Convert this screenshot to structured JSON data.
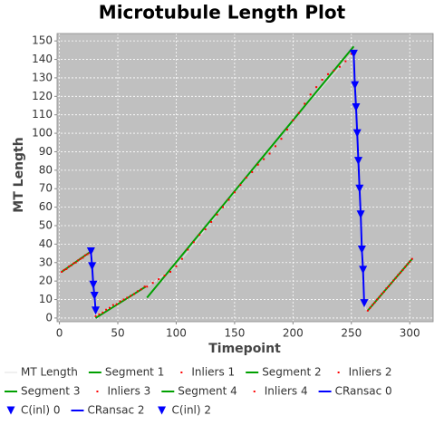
{
  "chart_data": {
    "type": "line",
    "title": "Microtubule Length Plot",
    "x_label": "Timepoint",
    "y_label": "MT Length",
    "xlim": [
      -2,
      320
    ],
    "ylim": [
      -2,
      154
    ],
    "xticks": [
      0,
      50,
      100,
      150,
      200,
      250,
      300
    ],
    "yticks": [
      0,
      10,
      20,
      30,
      40,
      50,
      60,
      70,
      80,
      90,
      100,
      110,
      120,
      130,
      140,
      150
    ],
    "grid": true,
    "background": "#c0c0c0",
    "series": [
      {
        "name": "MT Length",
        "style": "line",
        "color": "#e0e0e0",
        "x": [
          2,
          28,
          30,
          75,
          100,
          150,
          200,
          250,
          252,
          262,
          264,
          302
        ],
        "values": [
          25,
          36,
          1,
          17,
          28,
          68,
          107,
          143,
          143,
          5,
          4,
          32
        ]
      },
      {
        "name": "Segment 1",
        "style": "line",
        "color": "#00a000",
        "x": [
          2,
          28
        ],
        "values": [
          25,
          36.5
        ]
      },
      {
        "name": "Inliers 1",
        "style": "points",
        "color": "#ff0000",
        "x": [
          2,
          4,
          6,
          8,
          10,
          12,
          14,
          16,
          18,
          20,
          22,
          24,
          26,
          28
        ],
        "values": [
          25,
          26,
          26.5,
          27.8,
          28.4,
          29.6,
          30,
          31.2,
          32,
          32.6,
          33.9,
          34.5,
          35.2,
          36.4
        ]
      },
      {
        "name": "Segment 2",
        "style": "line",
        "color": "#00a000",
        "x": [
          31,
          74
        ],
        "values": [
          0,
          17
        ]
      },
      {
        "name": "Inliers 2",
        "style": "points",
        "color": "#ff0000",
        "x": [
          31,
          34,
          37,
          40,
          43,
          46,
          49,
          52,
          55,
          58,
          61,
          64,
          67,
          70,
          73
        ],
        "values": [
          1,
          2,
          3,
          4.5,
          5.5,
          7,
          7.5,
          9,
          10,
          11,
          12,
          13,
          14.5,
          15.5,
          17
        ]
      },
      {
        "name": "Segment 3",
        "style": "line",
        "color": "#00a000",
        "x": [
          75,
          252
        ],
        "values": [
          11,
          147
        ]
      },
      {
        "name": "Inliers 3",
        "style": "points",
        "color": "#ff0000",
        "x": [
          75,
          80,
          85,
          90,
          95,
          100,
          105,
          110,
          115,
          120,
          125,
          130,
          135,
          140,
          145,
          150,
          155,
          160,
          165,
          170,
          175,
          180,
          185,
          190,
          195,
          200,
          205,
          210,
          215,
          220,
          225,
          230,
          235,
          240,
          245,
          250
        ],
        "values": [
          17,
          19,
          21,
          23,
          25,
          28,
          32,
          37,
          41,
          45,
          48,
          52,
          56,
          60,
          64,
          68,
          72,
          76,
          79,
          83,
          86,
          89,
          93,
          97,
          102,
          107,
          111,
          116,
          121,
          125,
          129,
          132,
          134,
          136,
          139,
          143
        ]
      },
      {
        "name": "Segment 4",
        "style": "line",
        "color": "#00a000",
        "x": [
          264,
          302
        ],
        "values": [
          4,
          32
        ]
      },
      {
        "name": "Inliers 4",
        "style": "points",
        "color": "#ff0000",
        "x": [
          264,
          266,
          268,
          270,
          272,
          274,
          276,
          278,
          280,
          282,
          284,
          286,
          288,
          290,
          292,
          294,
          296,
          298,
          300,
          302
        ],
        "values": [
          4,
          5.5,
          7,
          8.4,
          10,
          11.4,
          13,
          14.3,
          16,
          17.2,
          18.8,
          20.3,
          21.7,
          23.3,
          24.6,
          26,
          27.6,
          29.1,
          30.5,
          32
        ]
      },
      {
        "name": "CRansac 0",
        "style": "line",
        "color": "#0000ff",
        "x": [
          27,
          28,
          29,
          30,
          31
        ],
        "values": [
          36,
          28,
          18,
          12,
          4
        ]
      },
      {
        "name": "C(inl) 0",
        "style": "triangles",
        "color": "#0000ff",
        "x": [
          27,
          28,
          29,
          30,
          31
        ],
        "values": [
          36,
          28,
          18,
          12,
          4
        ]
      },
      {
        "name": "CRansac 2",
        "style": "line",
        "color": "#0000ff",
        "x": [
          252,
          253,
          254,
          255,
          256,
          257,
          258,
          259,
          260,
          261
        ],
        "values": [
          143,
          126,
          114,
          100,
          85,
          70,
          56,
          37,
          26,
          8
        ]
      },
      {
        "name": "C(inl) 2",
        "style": "triangles",
        "color": "#0000ff",
        "x": [
          252,
          253,
          254,
          255,
          256,
          257,
          258,
          259,
          260,
          261
        ],
        "values": [
          143,
          126,
          114,
          100,
          85,
          70,
          56,
          37,
          26,
          8
        ]
      }
    ]
  }
}
